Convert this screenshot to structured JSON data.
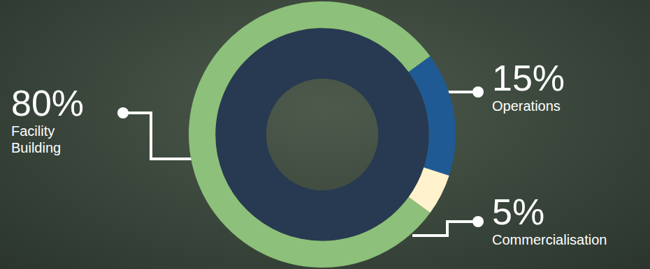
{
  "chart_data": {
    "type": "doughnut",
    "categories": [
      "Facility Building",
      "Operations",
      "Commercialisation"
    ],
    "values": [
      80,
      15,
      5
    ],
    "value_labels": [
      "80%",
      "15%",
      "5%"
    ],
    "colors": [
      "#8dc07a",
      "#1f5a94",
      "#fff2cc"
    ],
    "data_labels": true
  }
}
